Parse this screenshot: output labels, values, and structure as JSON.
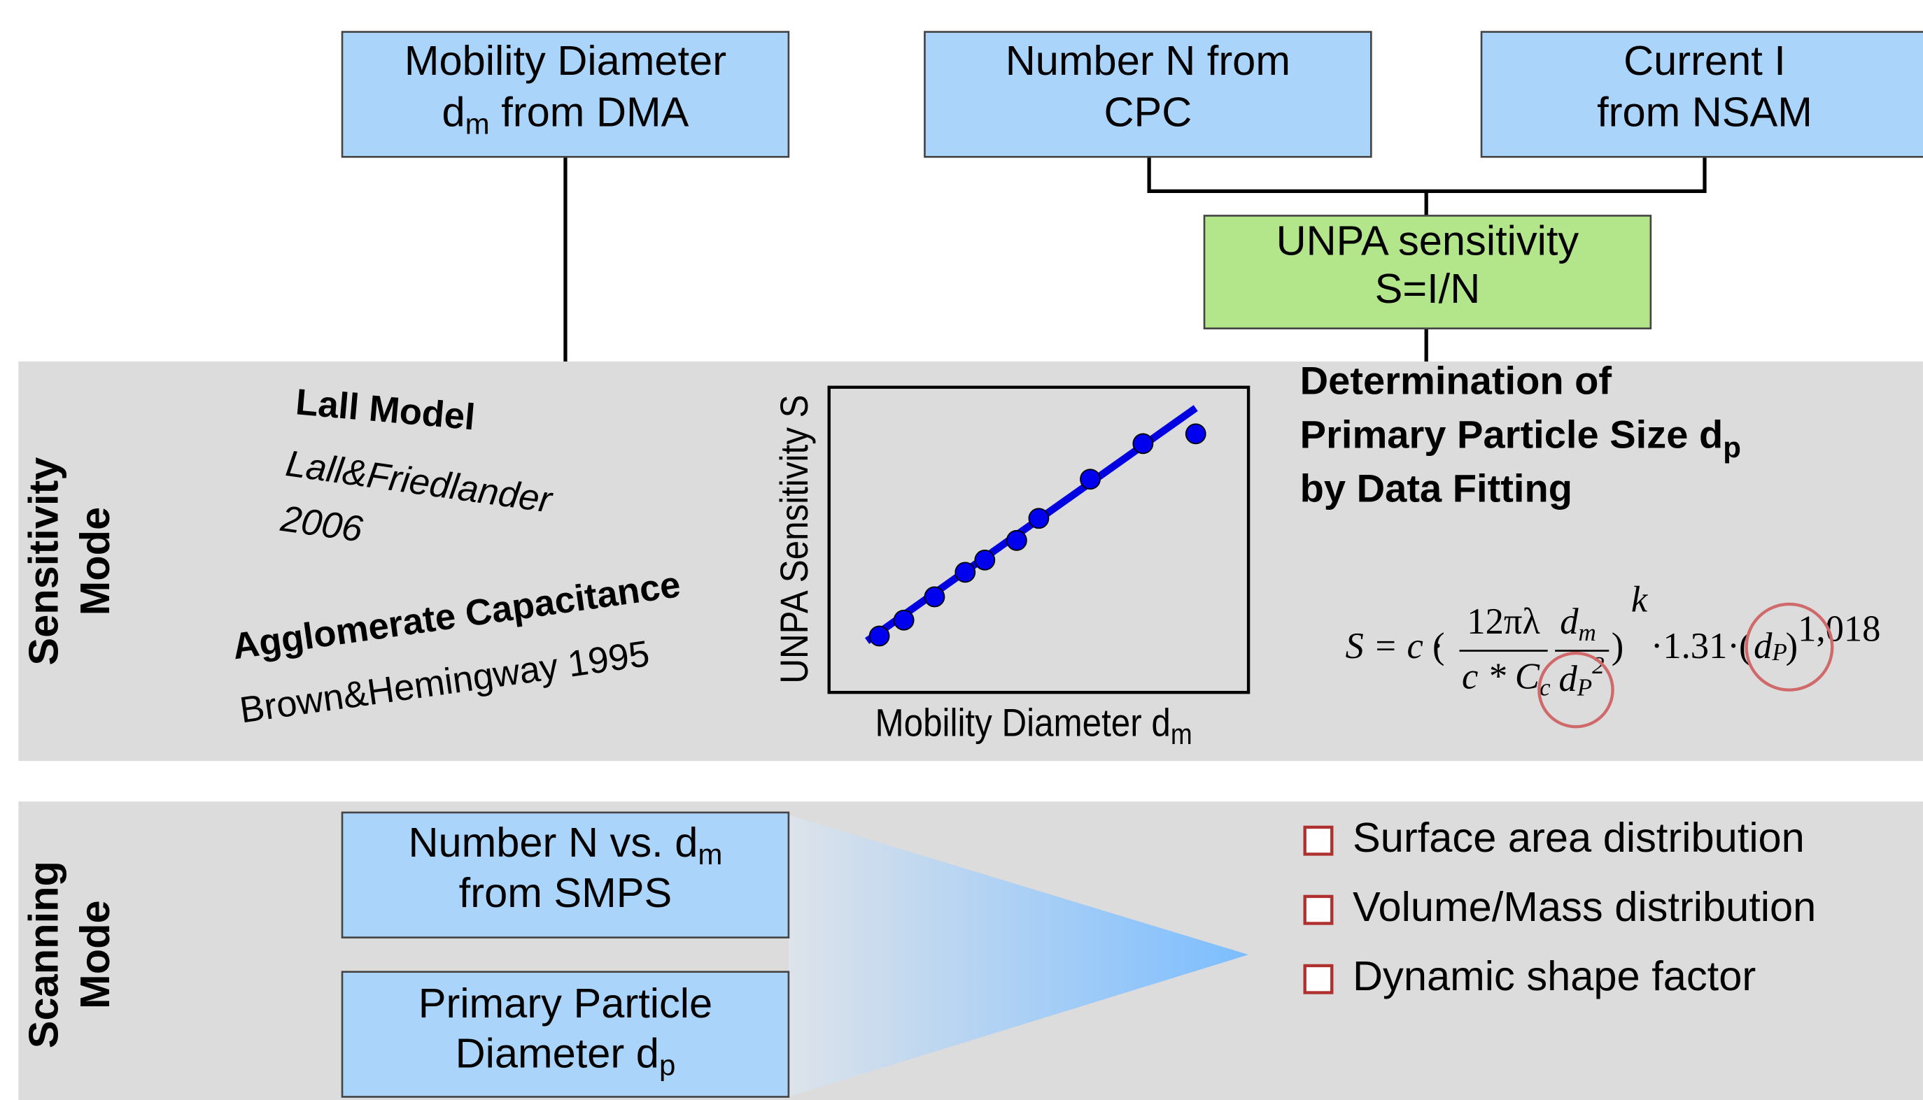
{
  "top_boxes": [
    {
      "lines": [
        {
          "text": "Mobility Diameter"
        },
        {
          "text": "d",
          "sub": "m",
          "after": " from DMA"
        }
      ]
    },
    {
      "lines": [
        {
          "text": "Number N from"
        },
        {
          "text": "CPC"
        }
      ]
    },
    {
      "lines": [
        {
          "text": "Current I"
        },
        {
          "text": "from NSAM"
        }
      ]
    }
  ],
  "sensitivity_box": {
    "lines": [
      "UNPA sensitivity",
      "S=I/N"
    ]
  },
  "mode_labels": [
    {
      "lines": [
        "Sensitivity",
        "Mode"
      ]
    },
    {
      "lines": [
        "Scanning",
        "Mode"
      ]
    }
  ],
  "lall": {
    "title": "Lall Model",
    "ref": [
      "Lall&Friedlander",
      "2006"
    ]
  },
  "agglomerate": {
    "title": "Agglomerate Capacitance",
    "ref": "Brown&Hemingway 1995"
  },
  "plot": {
    "y_label": "UNPA Sensitivity S",
    "x_label": {
      "text": "Mobility Diameter d",
      "sub": "m"
    }
  },
  "determination": [
    {
      "text": "Determination of"
    },
    {
      "text": "Primary Particle Size d",
      "sub": "p"
    },
    {
      "text": "by Data Fitting"
    }
  ],
  "formula": [
    "S = c ·",
    "12πλ",
    "c * C",
    "c",
    "d",
    "m",
    "d",
    "P",
    "2",
    "k",
    "·1.31·",
    "d",
    "P",
    "1,018"
  ],
  "scan_boxes": [
    {
      "lines": [
        {
          "text": "Number N vs. d",
          "sub": "m"
        },
        {
          "text": "from SMPS"
        }
      ]
    },
    {
      "lines": [
        {
          "text": "Primary Particle"
        },
        {
          "text": "Diameter d",
          "sub": "p"
        }
      ]
    }
  ],
  "outcomes": [
    "Surface area distribution",
    "Volume/Mass distribution",
    "Dynamic shape factor"
  ]
}
